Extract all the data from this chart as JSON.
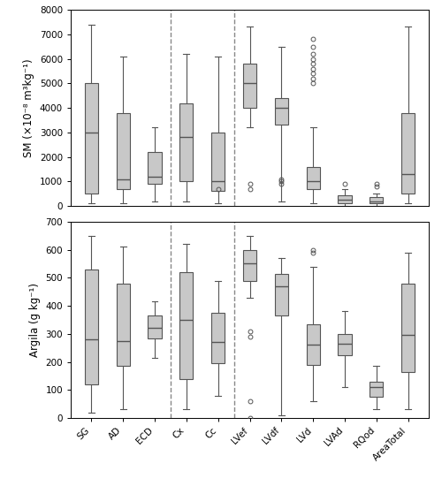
{
  "categories": [
    "SG",
    "AD",
    "ECD",
    "Cx",
    "Cc",
    "LVef",
    "LVdf",
    "LVd",
    "LVAd",
    "RQod",
    "AreaTotal"
  ],
  "dashed_lines_after": [
    2,
    4
  ],
  "sm": {
    "boxes": [
      {
        "q1": 500,
        "median": 3000,
        "q3": 5000,
        "whisker_low": 100,
        "whisker_high": 7400,
        "fliers": []
      },
      {
        "q1": 700,
        "median": 1100,
        "q3": 3800,
        "whisker_low": 100,
        "whisker_high": 6100,
        "fliers": []
      },
      {
        "q1": 900,
        "median": 1200,
        "q3": 2200,
        "whisker_low": 200,
        "whisker_high": 3200,
        "fliers": []
      },
      {
        "q1": 1000,
        "median": 2800,
        "q3": 4200,
        "whisker_low": 200,
        "whisker_high": 6200,
        "fliers": []
      },
      {
        "q1": 600,
        "median": 1000,
        "q3": 3000,
        "whisker_low": 100,
        "whisker_high": 6100,
        "fliers": [
          700
        ]
      },
      {
        "q1": 4000,
        "median": 5000,
        "q3": 5800,
        "whisker_low": 3200,
        "whisker_high": 7300,
        "fliers": [
          700,
          900
        ]
      },
      {
        "q1": 3300,
        "median": 4000,
        "q3": 4400,
        "whisker_low": 200,
        "whisker_high": 6500,
        "fliers": [
          900,
          1000,
          1100
        ]
      },
      {
        "q1": 700,
        "median": 1000,
        "q3": 1600,
        "whisker_low": 100,
        "whisker_high": 3200,
        "fliers": [
          5000,
          5200,
          5400,
          5600,
          5800,
          6000,
          6200,
          6500,
          6800
        ]
      },
      {
        "q1": 100,
        "median": 250,
        "q3": 450,
        "whisker_low": 0,
        "whisker_high": 700,
        "fliers": [
          900
        ]
      },
      {
        "q1": 100,
        "median": 200,
        "q3": 350,
        "whisker_low": 0,
        "whisker_high": 500,
        "fliers": [
          800,
          900
        ]
      },
      {
        "q1": 500,
        "median": 1300,
        "q3": 3800,
        "whisker_low": 100,
        "whisker_high": 7300,
        "fliers": []
      }
    ],
    "ylim": [
      0,
      8000
    ],
    "yticks": [
      0,
      1000,
      2000,
      3000,
      4000,
      5000,
      6000,
      7000,
      8000
    ],
    "ylabel": "SM (×10⁻⁸ m³kg⁻¹)"
  },
  "argila": {
    "boxes": [
      {
        "q1": 120,
        "median": 280,
        "q3": 530,
        "whisker_low": 20,
        "whisker_high": 650,
        "fliers": []
      },
      {
        "q1": 185,
        "median": 275,
        "q3": 480,
        "whisker_low": 30,
        "whisker_high": 610,
        "fliers": []
      },
      {
        "q1": 285,
        "median": 320,
        "q3": 365,
        "whisker_low": 215,
        "whisker_high": 415,
        "fliers": []
      },
      {
        "q1": 140,
        "median": 350,
        "q3": 520,
        "whisker_low": 30,
        "whisker_high": 620,
        "fliers": []
      },
      {
        "q1": 195,
        "median": 270,
        "q3": 375,
        "whisker_low": 80,
        "whisker_high": 490,
        "fliers": []
      },
      {
        "q1": 490,
        "median": 550,
        "q3": 600,
        "whisker_low": 430,
        "whisker_high": 650,
        "fliers": [
          0,
          60,
          290,
          310
        ]
      },
      {
        "q1": 365,
        "median": 470,
        "q3": 515,
        "whisker_low": 10,
        "whisker_high": 570,
        "fliers": []
      },
      {
        "q1": 190,
        "median": 260,
        "q3": 335,
        "whisker_low": 60,
        "whisker_high": 540,
        "fliers": [
          590,
          600
        ]
      },
      {
        "q1": 225,
        "median": 265,
        "q3": 300,
        "whisker_low": 110,
        "whisker_high": 380,
        "fliers": []
      },
      {
        "q1": 75,
        "median": 110,
        "q3": 130,
        "whisker_low": 30,
        "whisker_high": 185,
        "fliers": []
      },
      {
        "q1": 165,
        "median": 295,
        "q3": 480,
        "whisker_low": 30,
        "whisker_high": 590,
        "fliers": []
      }
    ],
    "ylim": [
      0,
      700
    ],
    "yticks": [
      0,
      100,
      200,
      300,
      400,
      500,
      600,
      700
    ],
    "ylabel": "Argila (g kg⁻¹)"
  },
  "box_color": "#c8c8c8",
  "box_edgecolor": "#555555",
  "whisker_color": "#555555",
  "flier_color": "#555555",
  "median_color": "#555555",
  "dashed_color": "#888888",
  "figsize": [
    5.0,
    5.5
  ],
  "dpi": 100,
  "box_width": 0.42
}
